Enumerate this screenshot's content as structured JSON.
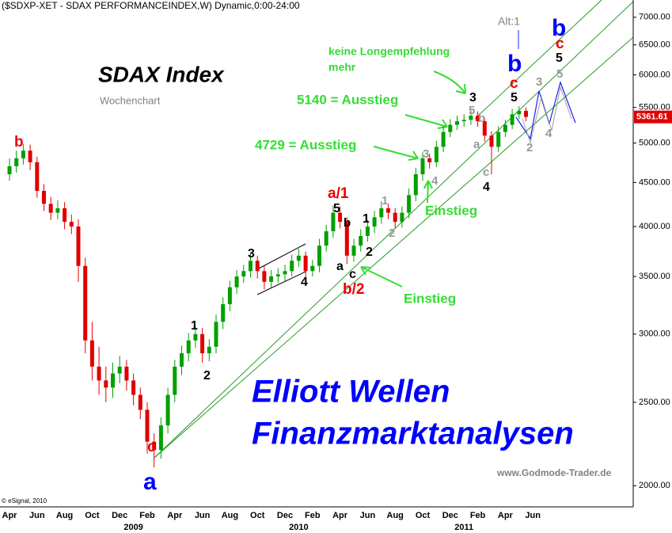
{
  "chart_data": {
    "type": "candlestick",
    "title": "($SDXP-XET - SDAX PERFORMANCEINDEX,W) Dynamic,0:00-24:00",
    "log_scale": true,
    "up_color": "#00a000",
    "down_color": "#e00000",
    "ylim": [
      1890,
      7330
    ],
    "yticks": [
      {
        "value": 2000,
        "label": "2000.00"
      },
      {
        "value": 2500,
        "label": "2500.00"
      },
      {
        "value": 3000,
        "label": "3000.00"
      },
      {
        "value": 3500,
        "label": "3500.00"
      },
      {
        "value": 4000,
        "label": "4000.00"
      },
      {
        "value": 4500,
        "label": "4500.00"
      },
      {
        "value": 5000,
        "label": "5000.00"
      },
      {
        "value": 5500,
        "label": "5500.00"
      },
      {
        "value": 6000,
        "label": "6000.00"
      },
      {
        "value": 6500,
        "label": "6500.00"
      },
      {
        "value": 7000,
        "label": "7000.00"
      }
    ],
    "last_price": 5361.61,
    "categories": [
      "Apr",
      null,
      null,
      null,
      "Jun",
      null,
      null,
      null,
      "Aug",
      null,
      null,
      null,
      "Oct",
      null,
      null,
      null,
      "Dec",
      null,
      null,
      null,
      "Feb",
      null,
      null,
      null,
      "Apr",
      null,
      null,
      null,
      "Jun",
      null,
      null,
      null,
      "Aug",
      null,
      null,
      null,
      "Oct",
      null,
      null,
      null,
      "Dec",
      null,
      null,
      null,
      "Feb",
      null,
      null,
      null,
      "Apr",
      null,
      null,
      null,
      "Jun",
      null,
      null,
      null,
      "Aug",
      null,
      null,
      null,
      "Oct",
      null,
      null,
      null,
      "Dec",
      null,
      null,
      null,
      "Feb",
      null,
      null,
      null,
      "Apr",
      null,
      null,
      null,
      "Jun",
      null,
      null,
      null,
      null,
      null,
      null,
      null,
      null,
      null,
      null,
      null,
      null,
      null,
      null
    ],
    "year_labels": [
      null,
      null,
      null,
      null,
      null,
      null,
      null,
      null,
      null,
      null,
      null,
      null,
      null,
      null,
      null,
      null,
      null,
      null,
      "2009",
      null,
      null,
      null,
      null,
      null,
      null,
      null,
      null,
      null,
      null,
      null,
      null,
      null,
      null,
      null,
      null,
      null,
      null,
      null,
      null,
      null,
      null,
      null,
      "2010",
      null,
      null,
      null,
      null,
      null,
      null,
      null,
      null,
      null,
      null,
      null,
      null,
      null,
      null,
      null,
      null,
      null,
      null,
      null,
      null,
      null,
      null,
      null,
      "2011",
      null,
      null,
      null,
      null,
      null,
      null,
      null,
      null,
      null,
      null,
      null,
      null,
      null,
      null,
      null,
      null,
      null,
      null,
      null,
      null,
      null,
      null,
      null,
      null
    ],
    "open": [
      4600,
      4700,
      4800,
      4900,
      4750,
      4400,
      4250,
      4150,
      4200,
      4050,
      4000,
      3600,
      2950,
      2750,
      2650,
      2600,
      2700,
      2750,
      2650,
      2550,
      2450,
      2250,
      2200,
      2350,
      2550,
      2750,
      2850,
      2950,
      3000,
      2850,
      2900,
      3100,
      3250,
      3400,
      3500,
      3550,
      3650,
      3550,
      3450,
      3500,
      3520,
      3550,
      3650,
      3700,
      3550,
      3600,
      3800,
      3950,
      4150,
      4050,
      3700,
      3800,
      3900,
      4000,
      4100,
      4200,
      4150,
      4050,
      4150,
      4350,
      4600,
      4800,
      4750,
      4950,
      5150,
      5250,
      5300,
      5320,
      5380,
      5300,
      5100,
      4950,
      5150,
      5250,
      5400,
      5450,
      null,
      null,
      null,
      null,
      null,
      null,
      null,
      null,
      null,
      null,
      null,
      null,
      null,
      null,
      null
    ],
    "high": [
      4800,
      4900,
      4990,
      4980,
      4820,
      4480,
      4330,
      4290,
      4270,
      4130,
      4080,
      3680,
      3100,
      2900,
      2750,
      2780,
      2830,
      2800,
      2700,
      2600,
      2500,
      2300,
      2400,
      2600,
      2800,
      2910,
      3010,
      3060,
      3050,
      2960,
      3160,
      3310,
      3460,
      3560,
      3610,
      3720,
      3700,
      3600,
      3560,
      3580,
      3610,
      3710,
      3770,
      3740,
      3660,
      3870,
      4020,
      4230,
      4220,
      4100,
      3870,
      3970,
      4070,
      4170,
      4280,
      4250,
      4200,
      4220,
      4430,
      4680,
      4880,
      4860,
      5030,
      5230,
      5330,
      5380,
      5400,
      5460,
      5440,
      5350,
      5160,
      5230,
      5320,
      5480,
      5520,
      5500,
      null,
      null,
      null,
      null,
      null,
      null,
      null,
      null,
      null,
      null,
      null,
      null,
      null,
      null,
      null
    ],
    "low": [
      4520,
      4620,
      4720,
      4650,
      4320,
      4170,
      4070,
      4080,
      3970,
      3920,
      3450,
      2850,
      2650,
      2550,
      2500,
      2530,
      2630,
      2580,
      2480,
      2390,
      2180,
      2100,
      2150,
      2300,
      2500,
      2690,
      2790,
      2890,
      2780,
      2790,
      2850,
      3040,
      3190,
      3340,
      3440,
      3490,
      3480,
      3380,
      3400,
      3440,
      3460,
      3500,
      3590,
      3480,
      3500,
      3540,
      3740,
      3880,
      3980,
      3620,
      3640,
      3740,
      3840,
      3930,
      4030,
      4080,
      3980,
      3990,
      4090,
      4280,
      4520,
      4670,
      4690,
      4880,
      5080,
      5180,
      5220,
      5250,
      5220,
      5020,
      4600,
      4880,
      5080,
      5190,
      5330,
      5300,
      null,
      null,
      null,
      null,
      null,
      null,
      null,
      null,
      null,
      null,
      null,
      null,
      null,
      null,
      null
    ],
    "close": [
      4700,
      4800,
      4900,
      4750,
      4400,
      4250,
      4150,
      4200,
      4050,
      4000,
      3600,
      2950,
      2750,
      2650,
      2600,
      2700,
      2750,
      2650,
      2550,
      2450,
      2250,
      2200,
      2350,
      2550,
      2750,
      2850,
      2950,
      3000,
      2850,
      2900,
      3100,
      3250,
      3400,
      3500,
      3550,
      3650,
      3550,
      3450,
      3500,
      3520,
      3550,
      3650,
      3700,
      3550,
      3600,
      3800,
      3950,
      4150,
      4050,
      3700,
      3800,
      3900,
      4000,
      4100,
      4200,
      4150,
      4050,
      4150,
      4350,
      4600,
      4800,
      4750,
      4950,
      5150,
      5250,
      5300,
      5320,
      5380,
      5300,
      5100,
      4950,
      5150,
      5250,
      5400,
      5450,
      5362,
      null,
      null,
      null,
      null,
      null,
      null,
      null,
      null,
      null,
      null,
      null,
      null,
      null,
      null,
      null
    ],
    "annotations": [
      {
        "text": "SDAX Index",
        "color": "#000000"
      },
      {
        "text": "Wochenchart",
        "color": "#808080"
      },
      {
        "text": "keine Longempfehlung",
        "color": "#33dd33"
      },
      {
        "text": "mehr",
        "color": "#33dd33"
      },
      {
        "text": "5140 = Ausstieg",
        "color": "#33dd33"
      },
      {
        "text": "4729 = Ausstieg",
        "color": "#33dd33"
      },
      {
        "text": "Einstieg",
        "color": "#33dd33"
      },
      {
        "text": "Einstieg",
        "color": "#33dd33"
      },
      {
        "text": "Elliott Wellen",
        "color": "#0000ff"
      },
      {
        "text": "Finanzmarktanalysen",
        "color": "#0000ff"
      },
      {
        "text": "www.Godmode-Trader.de",
        "color": "#808080"
      },
      {
        "text": "© eSignal, 2010",
        "color": "#000000"
      },
      {
        "text": "Alt:1",
        "color": "#808080"
      },
      {
        "text": "b",
        "color": "#ee0000"
      },
      {
        "text": "c",
        "color": "#ee0000"
      },
      {
        "text": "a",
        "color": "#0000ff"
      },
      {
        "text": "1",
        "color": "#000000"
      },
      {
        "text": "2",
        "color": "#000000"
      },
      {
        "text": "3",
        "color": "#000000"
      },
      {
        "text": "4",
        "color": "#000000"
      },
      {
        "text": "5",
        "color": "#000000"
      },
      {
        "text": "a/1",
        "color": "#ee0000"
      },
      {
        "text": "b/2",
        "color": "#ee0000"
      },
      {
        "text": "a",
        "color": "#000000"
      },
      {
        "text": "c",
        "color": "#000000"
      },
      {
        "text": "b",
        "color": "#000000"
      },
      {
        "text": "1",
        "color": "#000000"
      },
      {
        "text": "2",
        "color": "#000000"
      },
      {
        "text": "1",
        "color": "#999999"
      },
      {
        "text": "2",
        "color": "#999999"
      },
      {
        "text": "3",
        "color": "#999999"
      },
      {
        "text": "4",
        "color": "#999999"
      },
      {
        "text": "5",
        "color": "#999999"
      },
      {
        "text": "b",
        "color": "#999999"
      },
      {
        "text": "a",
        "color": "#999999"
      },
      {
        "text": "c",
        "color": "#999999"
      },
      {
        "text": "4",
        "color": "#000000"
      },
      {
        "text": "3",
        "color": "#000000"
      },
      {
        "text": "5",
        "color": "#000000"
      },
      {
        "text": "c",
        "color": "#ee0000"
      },
      {
        "text": "b",
        "color": "#0000ff"
      },
      {
        "text": "3",
        "color": "#999999"
      },
      {
        "text": "5",
        "color": "#999999"
      },
      {
        "text": "2",
        "color": "#999999"
      },
      {
        "text": "4",
        "color": "#999999"
      },
      {
        "text": "b",
        "color": "#0000ff"
      },
      {
        "text": "c",
        "color": "#ee0000"
      },
      {
        "text": "5",
        "color": "#000000"
      }
    ]
  }
}
